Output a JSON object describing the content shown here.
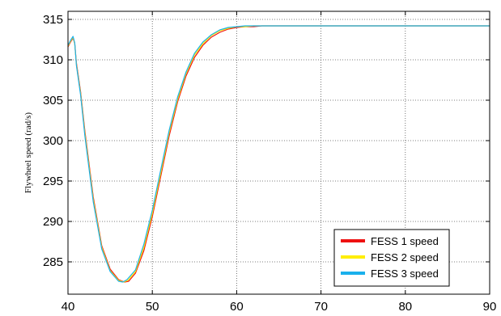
{
  "chart_data": {
    "type": "line",
    "title": "",
    "xlabel": "",
    "ylabel": "Flywheel speed (rad/s)",
    "xlim": [
      40,
      90
    ],
    "ylim": [
      281,
      316
    ],
    "grid": true,
    "legend_position": "bottom-right",
    "x_ticks": [
      40,
      50,
      60,
      70,
      80,
      90
    ],
    "y_ticks": [
      285,
      290,
      295,
      300,
      305,
      310,
      315
    ],
    "x_tick_labels": [
      "40",
      "50",
      "60",
      "70",
      "80",
      "90"
    ],
    "y_tick_labels": [
      "285",
      "290",
      "295",
      "300",
      "305",
      "310",
      "315"
    ],
    "series": [
      {
        "name": "FESS 1 speed",
        "color": "#ee1111",
        "x": [
          40,
          40.3,
          40.6,
          40.8,
          41.0,
          41.5,
          42,
          43,
          44,
          45,
          46,
          46.7,
          47.2,
          48,
          49,
          50,
          51,
          52,
          53,
          54,
          55,
          56,
          57,
          58,
          59,
          60,
          61,
          62,
          63,
          64,
          65,
          67,
          70,
          75,
          80,
          85,
          90
        ],
        "y": [
          311.6,
          312.2,
          312.7,
          312.0,
          309.6,
          306.0,
          301.2,
          293.0,
          287.0,
          284.1,
          282.8,
          282.5,
          282.6,
          283.6,
          286.4,
          290.6,
          295.6,
          300.6,
          304.8,
          308.0,
          310.3,
          311.8,
          312.8,
          313.4,
          313.8,
          314.0,
          314.1,
          314.1,
          314.2,
          314.2,
          314.2,
          314.2,
          314.2,
          314.2,
          314.2,
          314.2,
          314.2
        ]
      },
      {
        "name": "FESS 2 speed",
        "color": "#ffee00",
        "x": [
          40,
          40.3,
          40.6,
          40.8,
          41.0,
          41.5,
          42,
          43,
          44,
          45,
          46,
          46.6,
          47.1,
          48,
          49,
          50,
          51,
          52,
          53,
          54,
          55,
          56,
          57,
          58,
          59,
          60,
          61,
          62,
          63,
          64,
          65,
          67,
          70,
          75,
          80,
          85,
          90
        ],
        "y": [
          311.7,
          312.3,
          312.8,
          312.0,
          309.4,
          305.8,
          300.9,
          292.7,
          286.8,
          283.9,
          282.7,
          282.5,
          282.7,
          283.8,
          286.8,
          291.0,
          296.0,
          301.0,
          305.1,
          308.3,
          310.6,
          312.0,
          313.0,
          313.6,
          313.9,
          314.1,
          314.1,
          314.2,
          314.2,
          314.2,
          314.2,
          314.2,
          314.2,
          314.2,
          314.2,
          314.2,
          314.2
        ]
      },
      {
        "name": "FESS 3 speed",
        "color": "#1ab0ec",
        "x": [
          40,
          40.3,
          40.6,
          40.8,
          41.0,
          41.5,
          42,
          43,
          44,
          45,
          46,
          46.5,
          47.0,
          48,
          49,
          50,
          51,
          52,
          53,
          54,
          55,
          56,
          57,
          58,
          59,
          60,
          61,
          62,
          63,
          64,
          65,
          67,
          70,
          75,
          80,
          85,
          90
        ],
        "y": [
          311.8,
          312.4,
          312.9,
          312.1,
          309.3,
          305.6,
          300.6,
          292.4,
          286.6,
          283.8,
          282.6,
          282.5,
          282.8,
          284.0,
          287.2,
          291.4,
          296.4,
          301.3,
          305.4,
          308.5,
          310.8,
          312.2,
          313.1,
          313.7,
          314.0,
          314.1,
          314.2,
          314.2,
          314.2,
          314.2,
          314.2,
          314.2,
          314.2,
          314.2,
          314.2,
          314.2,
          314.2
        ]
      }
    ]
  }
}
